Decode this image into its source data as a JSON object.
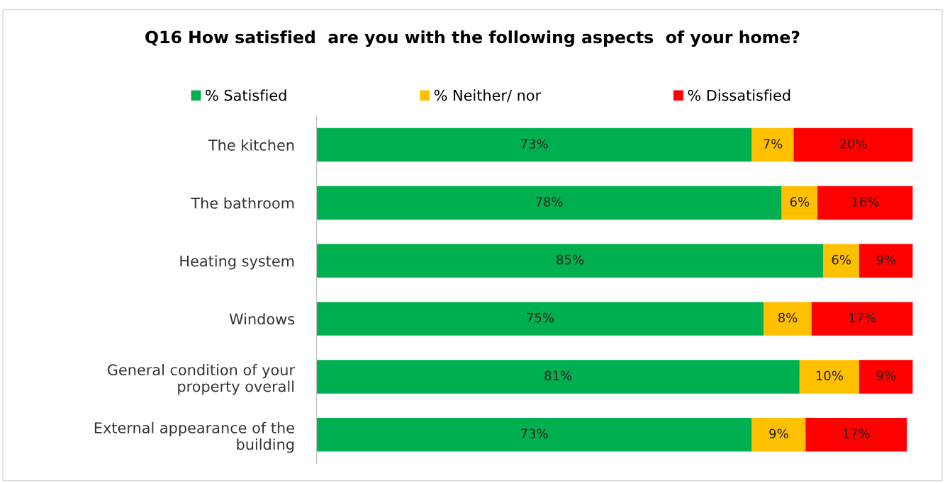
{
  "chart_data": {
    "type": "bar",
    "orientation": "horizontal",
    "stacked": true,
    "title": "Q16 How satisfied  are you with the following aspects  of your home?",
    "categories": [
      "The kitchen",
      "The bathroom",
      "Heating system",
      "Windows",
      "General condition of your\nproperty overall",
      "External appearance of the\nbuilding"
    ],
    "series": [
      {
        "name": "% Satisfied",
        "color": "#00b050",
        "values": [
          73,
          78,
          85,
          75,
          81,
          73
        ],
        "value_labels": [
          "73%",
          "78%",
          "85%",
          "75%",
          "81%",
          "73%"
        ]
      },
      {
        "name": "% Neither/ nor",
        "color": "#ffc000",
        "values": [
          7,
          6,
          6,
          8,
          10,
          9
        ],
        "value_labels": [
          "7%",
          "6%",
          "6%",
          "8%",
          "10%",
          "9%"
        ]
      },
      {
        "name": "% Dissatisfied",
        "color": "#ff0000",
        "values": [
          20,
          16,
          9,
          17,
          9,
          17
        ],
        "value_labels": [
          "20%",
          "16%",
          "9%",
          "17%",
          "9%",
          "17%"
        ]
      }
    ],
    "legend": "top",
    "grid": false
  }
}
